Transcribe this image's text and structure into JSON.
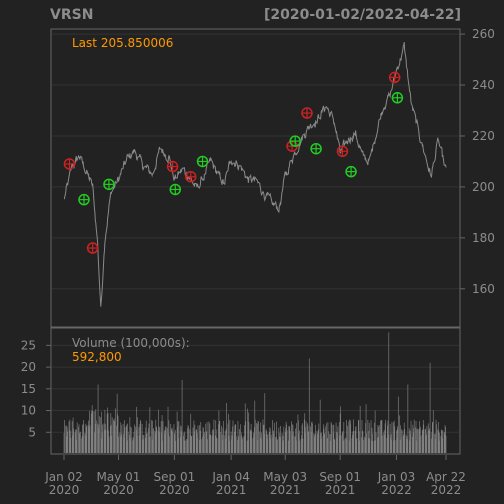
{
  "header": {
    "symbol": "VRSN",
    "date_range": "[2020-01-02/2022-04-22]"
  },
  "colors": {
    "background": "#222222",
    "panel": "#222222",
    "panel_border": "#666666",
    "grid": "#333333",
    "axis_text": "#8c8c8c",
    "title_text": "#8c8c8c",
    "price_line": "#8a8a8a",
    "accent": "#ff9900",
    "buy_marker": "#22cc22",
    "sell_marker": "#cc2222",
    "volume_bar": "#8c8c8c"
  },
  "chart_data": [
    {
      "type": "line",
      "title": "VRSN",
      "subtitle": "[2020-01-02/2022-04-22]",
      "legend": {
        "label": "Last",
        "value": "205.850006"
      },
      "x_ticks": [
        {
          "date": "2020-01-02",
          "label": [
            "Jan 02",
            "2020"
          ]
        },
        {
          "date": "2020-05-01",
          "label": [
            "May 01",
            "2020"
          ]
        },
        {
          "date": "2020-09-01",
          "label": [
            "Sep 01",
            "2020"
          ]
        },
        {
          "date": "2021-01-04",
          "label": [
            "Jan 04",
            "2021"
          ]
        },
        {
          "date": "2021-05-03",
          "label": [
            "May 03",
            "2021"
          ]
        },
        {
          "date": "2021-09-01",
          "label": [
            "Sep 01",
            "2021"
          ]
        },
        {
          "date": "2022-01-03",
          "label": [
            "Jan 03",
            "2022"
          ]
        },
        {
          "date": "2022-04-22",
          "label": [
            "Apr 22",
            "2022"
          ]
        }
      ],
      "ylim": [
        145,
        262
      ],
      "y_ticks": [
        160,
        180,
        200,
        220,
        240,
        260
      ],
      "grid": true,
      "series": [
        {
          "x": [
            "2020-01-02",
            "2020-01-20",
            "2020-02-05",
            "2020-02-20",
            "2020-03-05",
            "2020-03-16",
            "2020-03-23",
            "2020-04-01",
            "2020-04-15",
            "2020-05-01",
            "2020-05-20",
            "2020-06-05",
            "2020-06-25",
            "2020-07-15",
            "2020-08-01",
            "2020-08-20",
            "2020-09-01",
            "2020-09-20",
            "2020-10-05",
            "2020-10-20",
            "2020-11-05",
            "2020-11-20",
            "2020-12-05",
            "2020-12-20",
            "2021-01-04",
            "2021-01-25",
            "2021-02-10",
            "2021-03-01",
            "2021-03-20",
            "2021-04-05",
            "2021-04-20",
            "2021-05-03",
            "2021-05-20",
            "2021-06-05",
            "2021-06-25",
            "2021-07-15",
            "2021-08-01",
            "2021-08-20",
            "2021-09-01",
            "2021-09-20",
            "2021-10-05",
            "2021-10-20",
            "2021-11-05",
            "2021-11-20",
            "2021-12-05",
            "2021-12-20",
            "2022-01-03",
            "2022-01-20",
            "2022-02-05",
            "2022-02-20",
            "2022-03-05",
            "2022-03-20",
            "2022-04-05",
            "2022-04-22"
          ],
          "y": [
            195,
            208,
            212,
            206,
            200,
            178,
            152,
            180,
            198,
            203,
            211,
            214,
            208,
            205,
            215,
            212,
            203,
            207,
            204,
            199,
            204,
            210,
            205,
            201,
            211,
            208,
            203,
            202,
            197,
            193,
            192,
            204,
            212,
            218,
            224,
            227,
            232,
            225,
            213,
            219,
            221,
            212,
            210,
            222,
            232,
            236,
            246,
            255,
            232,
            222,
            214,
            204,
            218,
            206
          ]
        }
      ],
      "buy_signals": [
        {
          "date": "2020-02-15",
          "price": 195
        },
        {
          "date": "2020-04-10",
          "price": 201
        },
        {
          "date": "2020-09-03",
          "price": 199
        },
        {
          "date": "2020-11-02",
          "price": 210
        },
        {
          "date": "2021-05-25",
          "price": 218
        },
        {
          "date": "2021-07-10",
          "price": 215
        },
        {
          "date": "2021-09-25",
          "price": 206
        },
        {
          "date": "2022-01-05",
          "price": 235
        }
      ],
      "sell_signals": [
        {
          "date": "2020-01-14",
          "price": 209
        },
        {
          "date": "2020-03-05",
          "price": 176
        },
        {
          "date": "2020-08-28",
          "price": 208
        },
        {
          "date": "2020-10-07",
          "price": 204
        },
        {
          "date": "2021-05-18",
          "price": 216
        },
        {
          "date": "2021-06-20",
          "price": 229
        },
        {
          "date": "2021-09-06",
          "price": 214
        },
        {
          "date": "2021-12-30",
          "price": 243
        }
      ]
    },
    {
      "type": "bar",
      "title": "Volume (100,000s):",
      "legend": {
        "label": "Volume (100,000s):",
        "value": "592,800"
      },
      "ylim": [
        0,
        29
      ],
      "y_ticks": [
        5,
        10,
        15,
        20,
        25
      ],
      "spikes": [
        {
          "date": "2020-03-17",
          "value": 16
        },
        {
          "date": "2020-09-18",
          "value": 17
        },
        {
          "date": "2021-03-19",
          "value": 14
        },
        {
          "date": "2021-06-25",
          "value": 22
        },
        {
          "date": "2021-08-15",
          "value": 13
        },
        {
          "date": "2021-12-17",
          "value": 28
        },
        {
          "date": "2022-01-28",
          "value": 16
        },
        {
          "date": "2022-03-18",
          "value": 21
        }
      ],
      "typical_level": [
        3,
        8
      ]
    }
  ]
}
